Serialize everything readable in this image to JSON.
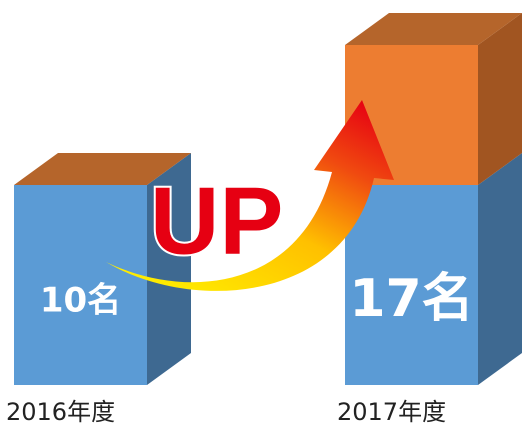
{
  "chart_data": {
    "type": "bar3d",
    "categories": [
      "2016年度",
      "2017年度"
    ],
    "series": [
      {
        "color": "#5b9bd5",
        "values": [
          10,
          10
        ]
      },
      {
        "color": "#ed7d31",
        "values": [
          null,
          7
        ]
      }
    ],
    "totals": [
      10,
      17
    ],
    "total_labels": [
      "10名",
      "17名"
    ],
    "annotation": "UP"
  }
}
